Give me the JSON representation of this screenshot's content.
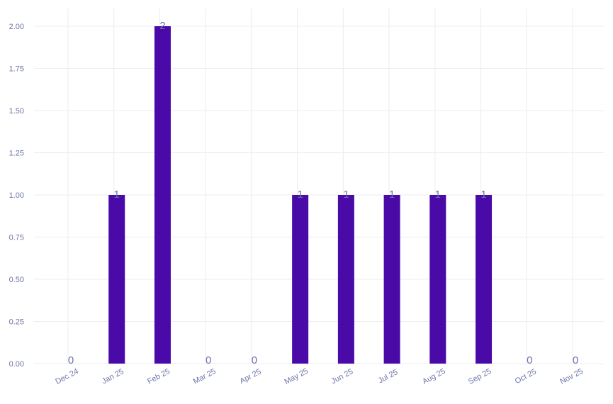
{
  "chart_data": {
    "type": "bar",
    "title": "",
    "xlabel": "",
    "ylabel": "",
    "categories": [
      "Dec 24",
      "Jan 25",
      "Feb 25",
      "Mar 25",
      "Apr 25",
      "May 25",
      "Jun 25",
      "Jul 25",
      "Aug 25",
      "Sep 25",
      "Oct 25",
      "Nov 25"
    ],
    "series": [
      {
        "values": [
          0,
          1,
          2,
          0,
          0,
          1,
          1,
          1,
          1,
          1,
          0,
          0
        ]
      }
    ],
    "data_labels": [
      "0",
      "1",
      "2",
      "0",
      "0",
      "1",
      "1",
      "1",
      "1",
      "1",
      "0",
      "0"
    ],
    "ylim": [
      0,
      2.1
    ],
    "y_ticks": [
      "0.00",
      "0.25",
      "0.50",
      "0.75",
      "1.00",
      "1.25",
      "1.50",
      "1.75",
      "2.00"
    ],
    "y_tick_values": [
      0,
      0.25,
      0.5,
      0.75,
      1,
      1.25,
      1.5,
      1.75,
      2
    ],
    "grid": true,
    "legend": "none",
    "colors": {
      "bar": "#4a0aa8",
      "text": "#6b74a8",
      "grid": "#ececf2"
    }
  }
}
